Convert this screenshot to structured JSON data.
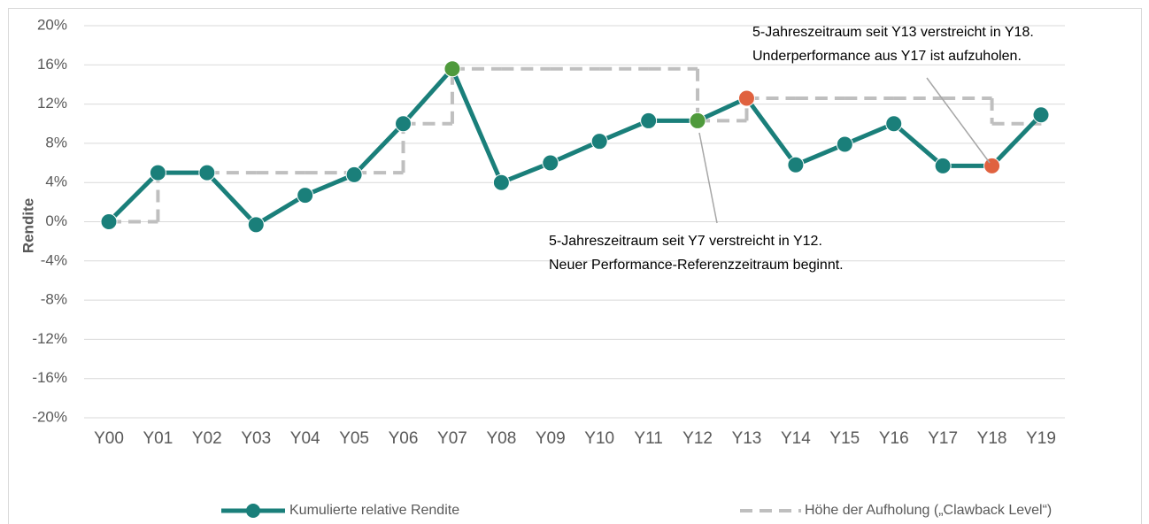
{
  "chart_data": {
    "type": "line",
    "y_label": "Rendite",
    "categories": [
      "Y00",
      "Y01",
      "Y02",
      "Y03",
      "Y04",
      "Y05",
      "Y06",
      "Y07",
      "Y08",
      "Y09",
      "Y10",
      "Y11",
      "Y12",
      "Y13",
      "Y14",
      "Y15",
      "Y16",
      "Y17",
      "Y18",
      "Y19"
    ],
    "series": [
      {
        "name": "Kumulierte relative Rendite",
        "color": "#1a7f7a",
        "style": "solid-markers",
        "values": [
          0,
          5.0,
          5.0,
          -0.3,
          2.7,
          4.8,
          10.0,
          15.6,
          4.0,
          6.0,
          8.2,
          10.3,
          10.3,
          12.6,
          5.8,
          7.9,
          10.0,
          5.7,
          5.7,
          10.9
        ],
        "marker_colors": [
          "#1a7f7a",
          "#1a7f7a",
          "#1a7f7a",
          "#1a7f7a",
          "#1a7f7a",
          "#1a7f7a",
          "#1a7f7a",
          "#4f9a3c",
          "#1a7f7a",
          "#1a7f7a",
          "#1a7f7a",
          "#1a7f7a",
          "#4f9a3c",
          "#e0623f",
          "#1a7f7a",
          "#1a7f7a",
          "#1a7f7a",
          "#1a7f7a",
          "#e0623f",
          "#1a7f7a"
        ]
      },
      {
        "name": "Höhe der Aufholung („Clawback Level“)",
        "color": "#bfbfbf",
        "style": "dashed-step",
        "values": [
          0,
          5,
          5,
          5,
          5,
          5,
          10,
          15.6,
          15.6,
          15.6,
          15.6,
          15.6,
          10.3,
          12.6,
          12.6,
          12.6,
          12.6,
          12.6,
          10.0,
          10.0
        ]
      }
    ],
    "ylim": [
      -20,
      20
    ],
    "yticks": [
      {
        "value": -20,
        "label": "-20%"
      },
      {
        "value": -16,
        "label": "-16%"
      },
      {
        "value": -12,
        "label": "-12%"
      },
      {
        "value": -8,
        "label": "-8%"
      },
      {
        "value": -4,
        "label": "-4%"
      },
      {
        "value": 0,
        "label": "0%"
      },
      {
        "value": 4,
        "label": "4%"
      },
      {
        "value": 8,
        "label": "8%"
      },
      {
        "value": 12,
        "label": "12%"
      },
      {
        "value": 16,
        "label": "16%"
      },
      {
        "value": 20,
        "label": "20%"
      }
    ],
    "grid": true,
    "legend": "bottom",
    "annotations": [
      {
        "lines": [
          "5-Jahreszeitraum seit Y13 verstreicht in Y18.",
          "Underperformance aus Y17 ist aufzuholen."
        ]
      },
      {
        "lines": [
          "5-Jahreszeitraum seit Y7 verstreicht in Y12.",
          "Neuer Performance-Referenzzeitraum beginnt."
        ]
      }
    ]
  }
}
